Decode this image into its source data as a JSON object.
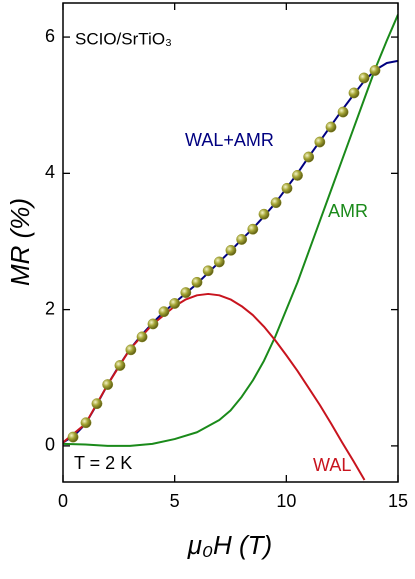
{
  "chart_data": {
    "type": "line",
    "annotations": [
      "SCIO/SrTiO₃",
      "T = 2 K"
    ],
    "xlabel": "μ₀H (T)",
    "ylabel": "MR  (%)",
    "xlim": [
      0,
      15
    ],
    "ylim": [
      -0.53,
      6.5
    ],
    "xticks": [
      0,
      5,
      10,
      15
    ],
    "yticks": [
      0,
      2,
      4,
      6
    ],
    "series": [
      {
        "type": "scatter",
        "color": "#8c8c1e",
        "x": [
          0.45,
          1.03,
          1.52,
          2.0,
          2.55,
          3.04,
          3.54,
          4.03,
          4.52,
          5.0,
          5.5,
          6.0,
          6.5,
          7.0,
          7.52,
          8.0,
          8.5,
          9.0,
          9.54,
          10.03,
          10.5,
          11.0,
          11.5,
          12.0,
          12.54,
          13.03,
          13.48,
          13.97
        ],
        "values": [
          0.13,
          0.34,
          0.62,
          0.9,
          1.18,
          1.41,
          1.6,
          1.79,
          1.97,
          2.09,
          2.25,
          2.4,
          2.57,
          2.7,
          2.87,
          3.03,
          3.18,
          3.4,
          3.57,
          3.78,
          3.97,
          4.24,
          4.46,
          4.68,
          4.9,
          5.18,
          5.4,
          5.51
        ]
      },
      {
        "type": "line",
        "name": "WAL+AMR",
        "color": "#000080",
        "x": [
          0,
          0.5,
          1,
          1.5,
          2,
          2.5,
          3,
          3.5,
          4,
          4.5,
          5,
          5.5,
          6,
          6.5,
          7,
          7.5,
          8,
          8.5,
          9,
          9.5,
          10,
          10.5,
          11,
          11.5,
          12,
          12.5,
          13,
          13.5,
          14,
          14.5,
          15
        ],
        "values": [
          0.05,
          0.15,
          0.32,
          0.6,
          0.9,
          1.17,
          1.42,
          1.62,
          1.8,
          1.96,
          2.1,
          2.24,
          2.38,
          2.54,
          2.7,
          2.86,
          3.03,
          3.19,
          3.37,
          3.56,
          3.78,
          4.0,
          4.24,
          4.47,
          4.7,
          4.93,
          5.15,
          5.36,
          5.52,
          5.62,
          5.65
        ]
      },
      {
        "type": "line",
        "name": "AMR",
        "color": "#1a8a1a",
        "x": [
          0,
          1,
          2,
          3,
          4,
          5,
          6,
          7,
          7.5,
          8,
          8.5,
          9,
          9.5,
          10,
          10.5,
          11,
          11.5,
          12,
          12.5,
          13,
          13.5,
          14,
          14.5,
          15
        ],
        "values": [
          0.03,
          0.02,
          0.0,
          0.0,
          0.03,
          0.1,
          0.2,
          0.38,
          0.52,
          0.72,
          0.96,
          1.25,
          1.6,
          2.0,
          2.4,
          2.85,
          3.3,
          3.75,
          4.2,
          4.65,
          5.1,
          5.55,
          5.95,
          6.33
        ]
      },
      {
        "type": "line",
        "name": "WAL",
        "color": "#c8141e",
        "x": [
          0,
          1,
          2,
          3,
          4,
          5,
          5.5,
          6,
          6.5,
          7,
          7.5,
          8,
          8.5,
          9,
          9.5,
          10,
          10.5,
          11,
          11.5,
          12,
          12.5,
          13,
          13.5
        ],
        "values": [
          0.05,
          0.32,
          0.9,
          1.42,
          1.78,
          2.05,
          2.15,
          2.21,
          2.23,
          2.21,
          2.15,
          2.05,
          1.92,
          1.75,
          1.55,
          1.33,
          1.1,
          0.85,
          0.6,
          0.33,
          0.05,
          -0.22,
          -0.5
        ]
      }
    ]
  }
}
